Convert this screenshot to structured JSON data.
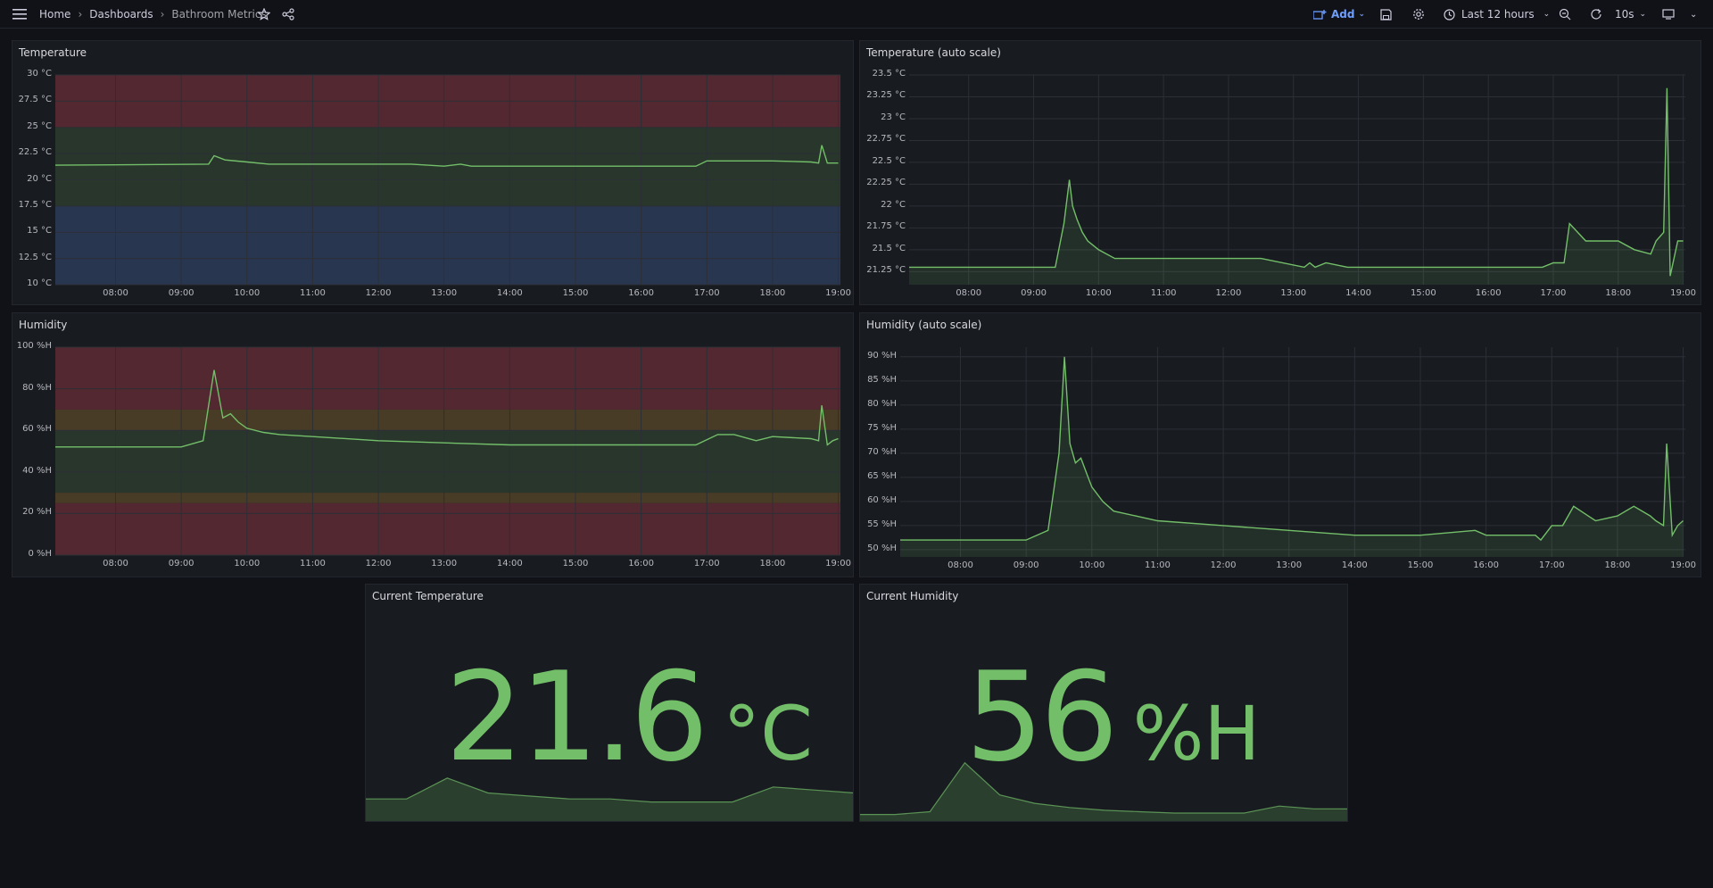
{
  "topbar": {
    "breadcrumbs": [
      "Home",
      "Dashboards",
      "Bathroom Metrics"
    ],
    "add_label": "Add",
    "time_range": "Last 12 hours",
    "refresh_interval": "10s"
  },
  "colors": {
    "series": "#73bf69",
    "threshold_red": "#5a2a33",
    "threshold_green": "#2a3a2e",
    "threshold_blue": "#2b3a55",
    "threshold_orange": "#4f4027"
  },
  "panels": {
    "temperature": {
      "title": "Temperature",
      "y_ticks": [
        "30 °C",
        "27.5 °C",
        "25 °C",
        "22.5 °C",
        "20 °C",
        "17.5 °C",
        "15 °C",
        "12.5 °C",
        "10 °C"
      ],
      "x_ticks": [
        "08:00",
        "09:00",
        "10:00",
        "11:00",
        "12:00",
        "13:00",
        "14:00",
        "15:00",
        "16:00",
        "17:00",
        "18:00",
        "19:00"
      ]
    },
    "temperature_auto": {
      "title": "Temperature (auto scale)",
      "y_ticks": [
        "23.5 °C",
        "23.25 °C",
        "23 °C",
        "22.75 °C",
        "22.5 °C",
        "22.25 °C",
        "22 °C",
        "21.75 °C",
        "21.5 °C",
        "21.25 °C"
      ],
      "x_ticks": [
        "08:00",
        "09:00",
        "10:00",
        "11:00",
        "12:00",
        "13:00",
        "14:00",
        "15:00",
        "16:00",
        "17:00",
        "18:00",
        "19:00"
      ]
    },
    "humidity": {
      "title": "Humidity",
      "y_ticks": [
        "100 %H",
        "80 %H",
        "60 %H",
        "40 %H",
        "20 %H",
        "0 %H"
      ],
      "x_ticks": [
        "08:00",
        "09:00",
        "10:00",
        "11:00",
        "12:00",
        "13:00",
        "14:00",
        "15:00",
        "16:00",
        "17:00",
        "18:00",
        "19:00"
      ]
    },
    "humidity_auto": {
      "title": "Humidity (auto scale)",
      "y_ticks": [
        "90 %H",
        "85 %H",
        "80 %H",
        "75 %H",
        "70 %H",
        "65 %H",
        "60 %H",
        "55 %H",
        "50 %H"
      ],
      "x_ticks": [
        "08:00",
        "09:00",
        "10:00",
        "11:00",
        "12:00",
        "13:00",
        "14:00",
        "15:00",
        "16:00",
        "17:00",
        "18:00",
        "19:00"
      ]
    },
    "current_temperature": {
      "title": "Current Temperature",
      "value": "21.6",
      "unit": "°C"
    },
    "current_humidity": {
      "title": "Current Humidity",
      "value": "56",
      "unit": "%H"
    }
  },
  "chart_data": [
    {
      "type": "line",
      "title": "Temperature",
      "ylim": [
        10,
        30
      ],
      "x": [
        "07:05",
        "09:25",
        "09:30",
        "09:40",
        "10:00",
        "10:20",
        "12:30",
        "13:00",
        "13:15",
        "13:25",
        "14:00",
        "15:00",
        "16:00",
        "16:45",
        "16:50",
        "17:00",
        "17:30",
        "18:00",
        "18:35",
        "18:42",
        "18:45",
        "18:50",
        "18:55",
        "19:00"
      ],
      "values": [
        21.4,
        21.5,
        22.3,
        21.9,
        21.7,
        21.5,
        21.5,
        21.3,
        21.5,
        21.3,
        21.3,
        21.3,
        21.3,
        21.3,
        21.3,
        21.8,
        21.8,
        21.8,
        21.7,
        21.6,
        23.3,
        21.6,
        21.6,
        21.6
      ],
      "thresholds": [
        {
          "from": 25,
          "to": 30,
          "color": "red"
        },
        {
          "from": 17.5,
          "to": 25,
          "color": "green"
        },
        {
          "from": 10,
          "to": 17.5,
          "color": "blue"
        }
      ]
    },
    {
      "type": "area",
      "title": "Temperature (auto scale)",
      "ylim": [
        21.1,
        23.5
      ],
      "x": [
        "07:05",
        "09:20",
        "09:28",
        "09:33",
        "09:36",
        "09:40",
        "09:45",
        "09:50",
        "09:55",
        "10:00",
        "10:15",
        "12:30",
        "13:10",
        "13:15",
        "13:20",
        "13:30",
        "13:50",
        "16:45",
        "16:50",
        "17:00",
        "17:10",
        "17:15",
        "17:30",
        "18:00",
        "18:15",
        "18:30",
        "18:35",
        "18:42",
        "18:45",
        "18:48",
        "18:55",
        "19:00"
      ],
      "values": [
        21.3,
        21.3,
        21.8,
        22.3,
        22.0,
        21.85,
        21.7,
        21.6,
        21.55,
        21.5,
        21.4,
        21.4,
        21.3,
        21.35,
        21.3,
        21.35,
        21.3,
        21.3,
        21.3,
        21.35,
        21.35,
        21.8,
        21.6,
        21.6,
        21.5,
        21.45,
        21.6,
        21.7,
        23.35,
        21.2,
        21.6,
        21.6
      ]
    },
    {
      "type": "line",
      "title": "Humidity",
      "ylim": [
        0,
        100
      ],
      "x": [
        "07:05",
        "09:00",
        "09:20",
        "09:30",
        "09:38",
        "09:45",
        "09:52",
        "10:00",
        "10:15",
        "10:30",
        "11:00",
        "12:00",
        "13:00",
        "14:00",
        "15:00",
        "16:00",
        "16:45",
        "16:50",
        "17:10",
        "17:25",
        "17:45",
        "18:00",
        "18:35",
        "18:42",
        "18:45",
        "18:50",
        "18:55",
        "19:00"
      ],
      "values": [
        52,
        52,
        55,
        89,
        66,
        68,
        64,
        61,
        59,
        58,
        57,
        55,
        54,
        53,
        53,
        53,
        53,
        53,
        58,
        58,
        55,
        57,
        56,
        55,
        72,
        53,
        55,
        56
      ],
      "thresholds": [
        {
          "from": 70,
          "to": 100,
          "color": "red"
        },
        {
          "from": 60,
          "to": 70,
          "color": "orange"
        },
        {
          "from": 30,
          "to": 60,
          "color": "green"
        },
        {
          "from": 25,
          "to": 30,
          "color": "orange"
        },
        {
          "from": 0,
          "to": 25,
          "color": "red"
        }
      ]
    },
    {
      "type": "area",
      "title": "Humidity (auto scale)",
      "ylim": [
        48.5,
        92
      ],
      "x": [
        "07:05",
        "09:00",
        "09:20",
        "09:30",
        "09:35",
        "09:40",
        "09:45",
        "09:50",
        "09:55",
        "10:00",
        "10:10",
        "10:20",
        "10:40",
        "11:00",
        "12:00",
        "13:00",
        "14:00",
        "15:00",
        "15:50",
        "16:00",
        "16:45",
        "16:50",
        "17:00",
        "17:10",
        "17:20",
        "17:40",
        "18:00",
        "18:15",
        "18:30",
        "18:35",
        "18:42",
        "18:45",
        "18:50",
        "18:55",
        "19:00"
      ],
      "values": [
        52,
        52,
        54,
        70,
        90,
        72,
        68,
        69,
        66,
        63,
        60,
        58,
        57,
        56,
        55,
        54,
        53,
        53,
        54,
        53,
        53,
        52,
        55,
        55,
        59,
        56,
        57,
        59,
        57,
        56,
        55,
        72,
        53,
        55,
        56
      ]
    },
    {
      "type": "area",
      "title": "Current Temperature",
      "values": [
        21.4,
        21.4,
        22.1,
        21.6,
        21.5,
        21.4,
        21.4,
        21.3,
        21.3,
        21.3,
        21.8,
        21.7,
        21.6
      ]
    },
    {
      "type": "area",
      "title": "Current Humidity",
      "values": [
        52,
        52,
        54,
        89,
        66,
        60,
        57,
        55,
        54,
        53,
        53,
        53,
        58,
        56,
        56
      ]
    }
  ]
}
